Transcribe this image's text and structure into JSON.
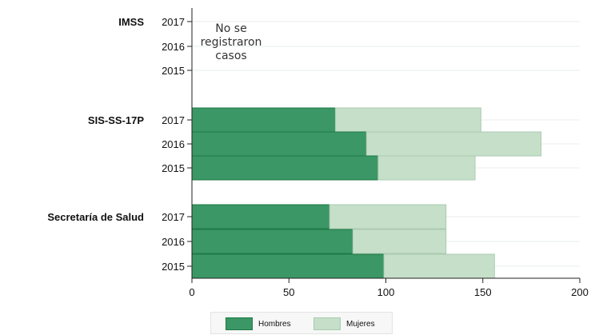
{
  "colors": {
    "hombres": "#3b9765",
    "mujeres": "#c6dfc9",
    "hombres_edge": "#1f7a45",
    "mujeres_edge": "#a9cbb0"
  },
  "chart_data": {
    "type": "bar",
    "orientation": "horizontal",
    "stacked": true,
    "xlim": [
      0,
      200
    ],
    "x_ticks": [
      0,
      50,
      100,
      150,
      200
    ],
    "grid": true,
    "legend_position": "bottom",
    "groups": [
      {
        "name": "IMSS",
        "years": [
          "2017",
          "2016",
          "2015"
        ],
        "hombres": [
          null,
          null,
          null
        ],
        "mujeres": [
          null,
          null,
          null
        ],
        "note": [
          "No se",
          "registraron",
          "casos"
        ]
      },
      {
        "name": "SIS-SS-17P",
        "years": [
          "2017",
          "2016",
          "2015"
        ],
        "hombres": [
          74,
          90,
          96
        ],
        "mujeres": [
          75,
          90,
          50
        ]
      },
      {
        "name": "Secretaría de Salud",
        "years": [
          "2017",
          "2016",
          "2015"
        ],
        "hombres": [
          71,
          83,
          99
        ],
        "mujeres": [
          60,
          48,
          57
        ]
      }
    ],
    "series": [
      {
        "name": "Hombres",
        "key": "hombres"
      },
      {
        "name": "Mujeres",
        "key": "mujeres"
      }
    ]
  }
}
